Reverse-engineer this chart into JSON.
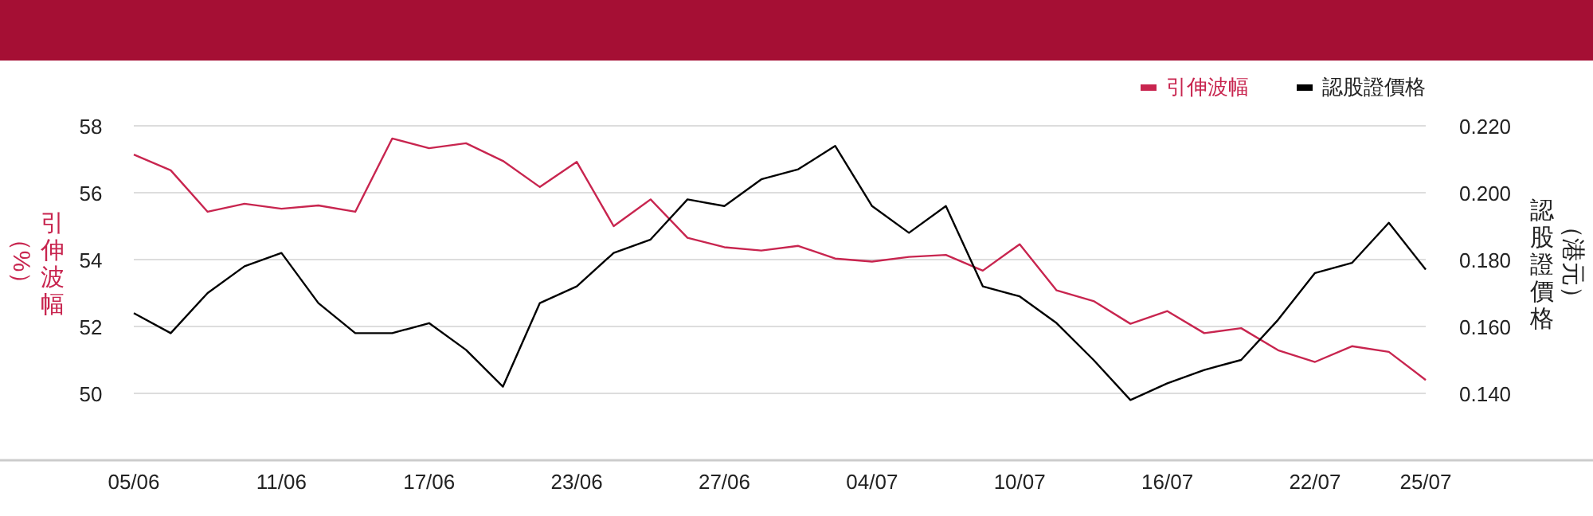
{
  "chart_data": {
    "type": "line",
    "categories": [
      "05/06",
      null,
      null,
      null,
      "11/06",
      null,
      null,
      null,
      "17/06",
      null,
      null,
      null,
      "23/06",
      null,
      null,
      null,
      "27/06",
      null,
      null,
      null,
      "04/07",
      null,
      null,
      null,
      "10/07",
      null,
      null,
      null,
      "16/07",
      null,
      null,
      null,
      "22/07",
      null,
      null,
      "25/07"
    ],
    "series": [
      {
        "name": "引伸波幅",
        "color": "#c8254f",
        "values": [
          57.14,
          56.67,
          55.43,
          55.67,
          55.52,
          55.62,
          55.43,
          57.62,
          57.33,
          57.48,
          56.95,
          56.17,
          56.92,
          55.0,
          55.8,
          54.65,
          54.37,
          54.27,
          54.41,
          54.03,
          53.94,
          54.08,
          54.14,
          53.67,
          54.46,
          53.08,
          52.76,
          52.08,
          52.46,
          51.8,
          51.95,
          51.29,
          50.94,
          51.41,
          51.24,
          50.4
        ]
      },
      {
        "name": "認股證價格",
        "color": "#000000",
        "axis": "y2",
        "values": [
          0.164,
          0.158,
          0.17,
          0.178,
          0.182,
          0.167,
          0.158,
          0.158,
          0.161,
          0.153,
          0.142,
          0.167,
          0.172,
          0.182,
          0.186,
          0.198,
          0.196,
          0.204,
          0.207,
          0.214,
          0.196,
          0.188,
          0.196,
          0.172,
          0.169,
          0.161,
          0.15,
          0.138,
          0.143,
          0.147,
          0.15,
          0.162,
          0.176,
          0.179,
          0.191,
          0.177
        ]
      }
    ],
    "ylabel": "引伸波幅（%）",
    "y2label": "認股證價格（港元）",
    "ylim": [
      48,
      58
    ],
    "yticks": [
      50,
      52,
      54,
      56,
      58
    ],
    "y2lim": [
      0.12,
      0.22
    ],
    "y2ticks": [
      {
        "value": 0.14,
        "label": "0.140"
      },
      {
        "value": 0.16,
        "label": "0.160"
      },
      {
        "value": 0.18,
        "label": "0.180"
      },
      {
        "value": 0.2,
        "label": "0.200"
      },
      {
        "value": 0.22,
        "label": "0.220"
      }
    ],
    "grid": "y",
    "legend": "top right"
  }
}
